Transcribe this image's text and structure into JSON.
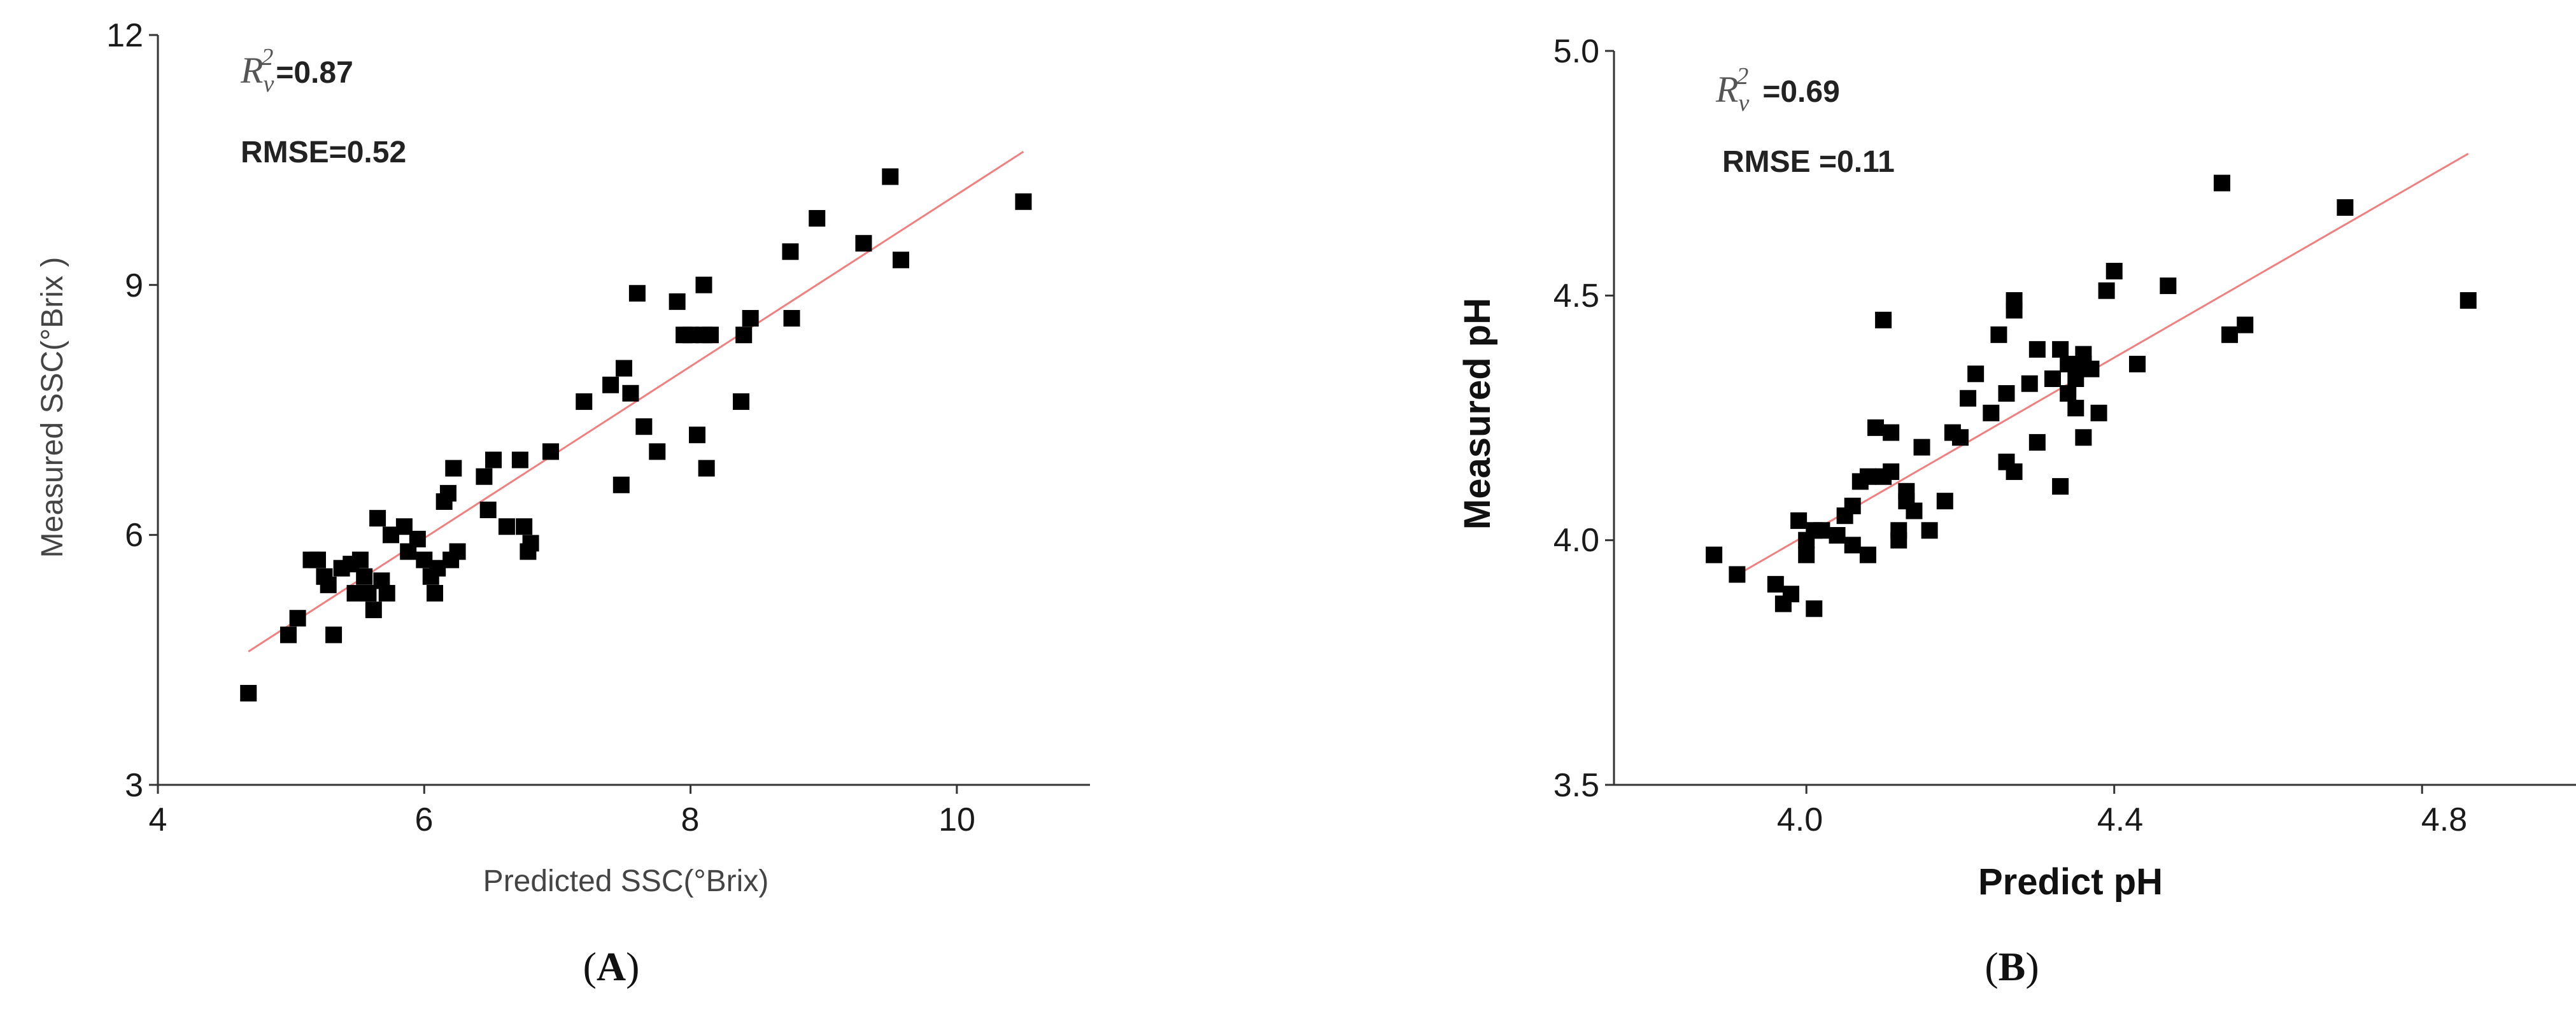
{
  "panels": [
    {
      "label": "A"
    },
    {
      "label": "B"
    }
  ],
  "chart_data": [
    {
      "type": "scatter",
      "xlabel": "Predicted SSC(°Brix)",
      "ylabel": "Measured SSC(°Brix )",
      "xlim": [
        4,
        11
      ],
      "ylim": [
        3,
        12
      ],
      "xticks": [
        "4",
        "6",
        "8",
        "10"
      ],
      "yticks": [
        "3",
        "6",
        "9",
        "12"
      ],
      "annotations": {
        "r2_symbol": "R",
        "r2_sub": "v",
        "r2_sup": "2",
        "r2_value": "=0.87",
        "rmse": "RMSE=0.52"
      },
      "fit_line": {
        "x": [
          4.68,
          10.5
        ],
        "y": [
          4.6,
          10.6
        ],
        "color": "#f08080"
      },
      "marker_color": "#000000",
      "points": [
        [
          4.68,
          4.1
        ],
        [
          4.98,
          4.8
        ],
        [
          5.05,
          5.0
        ],
        [
          5.15,
          5.7
        ],
        [
          5.2,
          5.7
        ],
        [
          5.25,
          5.5
        ],
        [
          5.28,
          5.4
        ],
        [
          5.32,
          4.8
        ],
        [
          5.38,
          5.6
        ],
        [
          5.45,
          5.65
        ],
        [
          5.48,
          5.3
        ],
        [
          5.52,
          5.7
        ],
        [
          5.55,
          5.5
        ],
        [
          5.58,
          5.3
        ],
        [
          5.62,
          5.1
        ],
        [
          5.65,
          6.2
        ],
        [
          5.68,
          5.45
        ],
        [
          5.72,
          5.3
        ],
        [
          5.75,
          6.0
        ],
        [
          5.85,
          6.1
        ],
        [
          5.88,
          5.8
        ],
        [
          5.95,
          5.95
        ],
        [
          6.0,
          5.7
        ],
        [
          6.05,
          5.5
        ],
        [
          6.08,
          5.3
        ],
        [
          6.1,
          5.6
        ],
        [
          6.15,
          6.4
        ],
        [
          6.18,
          6.5
        ],
        [
          6.2,
          5.7
        ],
        [
          6.22,
          6.8
        ],
        [
          6.25,
          5.8
        ],
        [
          6.45,
          6.7
        ],
        [
          6.48,
          6.3
        ],
        [
          6.52,
          6.9
        ],
        [
          6.62,
          6.1
        ],
        [
          6.72,
          6.9
        ],
        [
          6.75,
          6.1
        ],
        [
          6.78,
          5.8
        ],
        [
          6.8,
          5.9
        ],
        [
          6.95,
          7.0
        ],
        [
          7.2,
          7.6
        ],
        [
          7.4,
          7.8
        ],
        [
          7.48,
          6.6
        ],
        [
          7.5,
          8.0
        ],
        [
          7.55,
          7.7
        ],
        [
          7.6,
          8.9
        ],
        [
          7.65,
          7.3
        ],
        [
          7.75,
          7.0
        ],
        [
          7.9,
          8.8
        ],
        [
          7.95,
          8.4
        ],
        [
          8.0,
          8.4
        ],
        [
          8.05,
          7.2
        ],
        [
          8.1,
          8.4
        ],
        [
          8.12,
          6.8
        ],
        [
          8.15,
          8.4
        ],
        [
          8.1,
          9.0
        ],
        [
          8.38,
          7.6
        ],
        [
          8.4,
          8.4
        ],
        [
          8.45,
          8.6
        ],
        [
          8.75,
          9.4
        ],
        [
          8.76,
          8.6
        ],
        [
          8.95,
          9.8
        ],
        [
          9.3,
          9.5
        ],
        [
          9.5,
          10.3
        ],
        [
          9.58,
          9.3
        ],
        [
          10.5,
          10.0
        ]
      ]
    },
    {
      "type": "scatter",
      "xlabel": "Predict pH",
      "ylabel": "Measured pH",
      "xlim": [
        3.75,
        5.0
      ],
      "ylim": [
        3.5,
        5.0
      ],
      "xticks": [
        "4.0",
        "4.4",
        "4.8"
      ],
      "yticks": [
        "3.5",
        "4.0",
        "4.5",
        "5.0"
      ],
      "annotations": {
        "r2_symbol": "R",
        "r2_sub": "v",
        "r2_sup": "2",
        "r2_value": "=0.69",
        "rmse": "RMSE =0.11"
      },
      "fit_line": {
        "x": [
          3.9,
          4.86
        ],
        "y": [
          3.92,
          4.79
        ],
        "color": "#f08080"
      },
      "marker_color": "#000000",
      "points": [
        [
          3.88,
          3.97
        ],
        [
          3.91,
          3.93
        ],
        [
          3.96,
          3.91
        ],
        [
          3.97,
          3.87
        ],
        [
          3.98,
          3.89
        ],
        [
          3.99,
          4.04
        ],
        [
          4.0,
          4.0
        ],
        [
          4.0,
          3.97
        ],
        [
          4.01,
          4.02
        ],
        [
          4.01,
          3.86
        ],
        [
          4.02,
          4.02
        ],
        [
          4.04,
          4.01
        ],
        [
          4.05,
          4.05
        ],
        [
          4.06,
          4.07
        ],
        [
          4.06,
          3.99
        ],
        [
          4.07,
          4.12
        ],
        [
          4.08,
          4.13
        ],
        [
          4.08,
          3.97
        ],
        [
          4.09,
          4.23
        ],
        [
          4.1,
          4.13
        ],
        [
          4.1,
          4.45
        ],
        [
          4.11,
          4.22
        ],
        [
          4.11,
          4.14
        ],
        [
          4.12,
          4.0
        ],
        [
          4.12,
          4.02
        ],
        [
          4.13,
          4.1
        ],
        [
          4.13,
          4.08
        ],
        [
          4.14,
          4.06
        ],
        [
          4.15,
          4.19
        ],
        [
          4.16,
          4.02
        ],
        [
          4.18,
          4.08
        ],
        [
          4.19,
          4.22
        ],
        [
          4.2,
          4.21
        ],
        [
          4.21,
          4.29
        ],
        [
          4.22,
          4.34
        ],
        [
          4.24,
          4.26
        ],
        [
          4.25,
          4.42
        ],
        [
          4.26,
          4.3
        ],
        [
          4.26,
          4.16
        ],
        [
          4.27,
          4.14
        ],
        [
          4.27,
          4.47
        ],
        [
          4.27,
          4.49
        ],
        [
          4.29,
          4.32
        ],
        [
          4.3,
          4.2
        ],
        [
          4.3,
          4.39
        ],
        [
          4.32,
          4.33
        ],
        [
          4.33,
          4.39
        ],
        [
          4.33,
          4.11
        ],
        [
          4.34,
          4.36
        ],
        [
          4.34,
          4.3
        ],
        [
          4.35,
          4.27
        ],
        [
          4.35,
          4.33
        ],
        [
          4.36,
          4.38
        ],
        [
          4.36,
          4.21
        ],
        [
          4.36,
          4.36
        ],
        [
          4.37,
          4.35
        ],
        [
          4.38,
          4.26
        ],
        [
          4.39,
          4.51
        ],
        [
          4.4,
          4.55
        ],
        [
          4.43,
          4.36
        ],
        [
          4.47,
          4.52
        ],
        [
          4.54,
          4.73
        ],
        [
          4.55,
          4.42
        ],
        [
          4.57,
          4.44
        ],
        [
          4.7,
          4.68
        ],
        [
          4.86,
          4.49
        ]
      ]
    }
  ]
}
